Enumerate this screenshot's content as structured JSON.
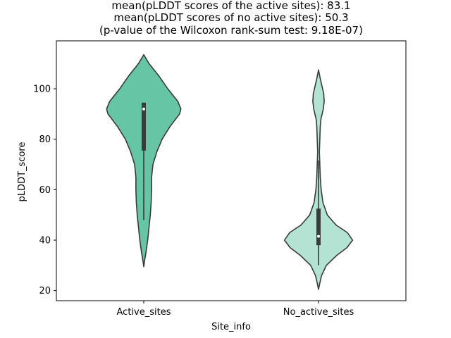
{
  "chart_data": {
    "type": "violin",
    "title_lines": [
      "mean(pLDDT scores of the active sites): 83.1",
      "mean(pLDDT scores of no active sites): 50.3",
      "(p-value of the Wilcoxon rank-sum test: 9.18E-07)"
    ],
    "xlabel": "Site_info",
    "ylabel": "pLDDT_score",
    "categories": [
      "Active_sites",
      "No_active_sites"
    ],
    "ylim": [
      16,
      119
    ],
    "yticks": [
      20,
      40,
      60,
      80,
      100
    ],
    "grid": false,
    "legend": "none",
    "colors": {
      "Active_sites": "#66c5a5",
      "No_active_sites": "#b2e3d3",
      "outline": "#3a3a3a"
    },
    "series": [
      {
        "category": "Active_sites",
        "mean": 83.1,
        "box": {
          "whisker_low": 48,
          "q1": 75.5,
          "median": 92,
          "q3": 94.5,
          "whisker_high": 94.5
        },
        "density": [
          [
            29.5,
            0.0
          ],
          [
            32,
            0.02
          ],
          [
            35,
            0.05
          ],
          [
            40,
            0.09
          ],
          [
            45,
            0.12
          ],
          [
            50,
            0.15
          ],
          [
            55,
            0.17
          ],
          [
            60,
            0.18
          ],
          [
            65,
            0.18
          ],
          [
            70,
            0.21
          ],
          [
            75,
            0.3
          ],
          [
            80,
            0.42
          ],
          [
            85,
            0.6
          ],
          [
            90,
            0.82
          ],
          [
            92,
            0.85
          ],
          [
            95,
            0.78
          ],
          [
            100,
            0.55
          ],
          [
            105,
            0.35
          ],
          [
            110,
            0.12
          ],
          [
            113.5,
            0.0
          ]
        ]
      },
      {
        "category": "No_active_sites",
        "mean": 50.3,
        "box": {
          "whisker_low": 30,
          "q1": 38,
          "median": 41.5,
          "q3": 52.5,
          "whisker_high": 71.5
        },
        "density": [
          [
            20.5,
            0.0
          ],
          [
            23,
            0.03
          ],
          [
            26,
            0.07
          ],
          [
            30,
            0.18
          ],
          [
            34,
            0.42
          ],
          [
            37,
            0.65
          ],
          [
            40,
            0.78
          ],
          [
            43,
            0.66
          ],
          [
            46,
            0.4
          ],
          [
            50,
            0.2
          ],
          [
            55,
            0.1
          ],
          [
            60,
            0.06
          ],
          [
            65,
            0.04
          ],
          [
            70,
            0.03
          ],
          [
            75,
            0.02
          ],
          [
            80,
            0.03
          ],
          [
            85,
            0.04
          ],
          [
            88,
            0.055
          ],
          [
            92,
            0.11
          ],
          [
            95,
            0.13
          ],
          [
            98,
            0.12
          ],
          [
            101,
            0.08
          ],
          [
            104,
            0.04
          ],
          [
            107.5,
            0.0
          ]
        ]
      }
    ]
  }
}
